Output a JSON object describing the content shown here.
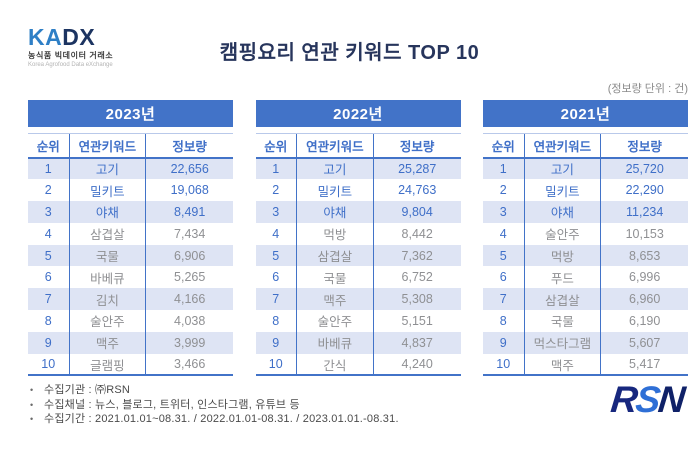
{
  "header": {
    "logo": {
      "name": "KADX",
      "name_ka": "KA",
      "name_dx": "DX",
      "sub_ko": "농식품 빅데이터 거래소",
      "sub_en": "Korea Agrofood Data eXchange"
    },
    "title": "캠핑요리 연관 키워드 TOP 10",
    "unit_note": "(정보량 단위 : 건)"
  },
  "columns": [
    "순위",
    "연관키워드",
    "정보량"
  ],
  "tables": [
    {
      "year": "2023년",
      "rows": [
        [
          "1",
          "고기",
          "22,656"
        ],
        [
          "2",
          "밀키트",
          "19,068"
        ],
        [
          "3",
          "야채",
          "8,491"
        ],
        [
          "4",
          "삼겹살",
          "7,434"
        ],
        [
          "5",
          "국물",
          "6,906"
        ],
        [
          "6",
          "바베큐",
          "5,265"
        ],
        [
          "7",
          "김치",
          "4,166"
        ],
        [
          "8",
          "술안주",
          "4,038"
        ],
        [
          "9",
          "맥주",
          "3,999"
        ],
        [
          "10",
          "글램핑",
          "3,466"
        ]
      ]
    },
    {
      "year": "2022년",
      "rows": [
        [
          "1",
          "고기",
          "25,287"
        ],
        [
          "2",
          "밀키트",
          "24,763"
        ],
        [
          "3",
          "야채",
          "9,804"
        ],
        [
          "4",
          "먹방",
          "8,442"
        ],
        [
          "5",
          "삼겹살",
          "7,362"
        ],
        [
          "6",
          "국물",
          "6,752"
        ],
        [
          "7",
          "맥주",
          "5,308"
        ],
        [
          "8",
          "술안주",
          "5,151"
        ],
        [
          "9",
          "바베큐",
          "4,837"
        ],
        [
          "10",
          "간식",
          "4,240"
        ]
      ]
    },
    {
      "year": "2021년",
      "rows": [
        [
          "1",
          "고기",
          "25,720"
        ],
        [
          "2",
          "밀키트",
          "22,290"
        ],
        [
          "3",
          "야채",
          "11,234"
        ],
        [
          "4",
          "술안주",
          "10,153"
        ],
        [
          "5",
          "먹방",
          "8,653"
        ],
        [
          "6",
          "푸드",
          "6,996"
        ],
        [
          "7",
          "삼겹살",
          "6,960"
        ],
        [
          "8",
          "국물",
          "6,190"
        ],
        [
          "9",
          "먹스타그램",
          "5,607"
        ],
        [
          "10",
          "맥주",
          "5,417"
        ]
      ]
    }
  ],
  "footnotes": [
    "수집기관 : ㈜RSN",
    "수집채널 : 뉴스, 블로그, 트위터, 인스타그램, 유튜브 등",
    "수집기간 : 2021.01.01~08.31. / 2022.01.01-08.31. / 2023.01.01.-08.31."
  ],
  "rsn_logo": {
    "r": "R",
    "s": "S",
    "n": "N"
  },
  "colors": {
    "accent": "#4273C8",
    "light_row": "#DEE4F4",
    "blue_text": "#3F6FC8",
    "gray_text": "#8F9093",
    "title": "#27355C"
  },
  "chart_data": [
    {
      "type": "table",
      "title": "2023년",
      "columns": [
        "순위",
        "연관키워드",
        "정보량"
      ],
      "rows": [
        [
          1,
          "고기",
          22656
        ],
        [
          2,
          "밀키트",
          19068
        ],
        [
          3,
          "야채",
          8491
        ],
        [
          4,
          "삼겹살",
          7434
        ],
        [
          5,
          "국물",
          6906
        ],
        [
          6,
          "바베큐",
          5265
        ],
        [
          7,
          "김치",
          4166
        ],
        [
          8,
          "술안주",
          4038
        ],
        [
          9,
          "맥주",
          3999
        ],
        [
          10,
          "글램핑",
          3466
        ]
      ]
    },
    {
      "type": "table",
      "title": "2022년",
      "columns": [
        "순위",
        "연관키워드",
        "정보량"
      ],
      "rows": [
        [
          1,
          "고기",
          25287
        ],
        [
          2,
          "밀키트",
          24763
        ],
        [
          3,
          "야채",
          9804
        ],
        [
          4,
          "먹방",
          8442
        ],
        [
          5,
          "삼겹살",
          7362
        ],
        [
          6,
          "국물",
          6752
        ],
        [
          7,
          "맥주",
          5308
        ],
        [
          8,
          "술안주",
          5151
        ],
        [
          9,
          "바베큐",
          4837
        ],
        [
          10,
          "간식",
          4240
        ]
      ]
    },
    {
      "type": "table",
      "title": "2021년",
      "columns": [
        "순위",
        "연관키워드",
        "정보량"
      ],
      "rows": [
        [
          1,
          "고기",
          25720
        ],
        [
          2,
          "밀키트",
          22290
        ],
        [
          3,
          "야채",
          11234
        ],
        [
          4,
          "술안주",
          10153
        ],
        [
          5,
          "먹방",
          8653
        ],
        [
          6,
          "푸드",
          6996
        ],
        [
          7,
          "삼겹살",
          6960
        ],
        [
          8,
          "국물",
          6190
        ],
        [
          9,
          "먹스타그램",
          5607
        ],
        [
          10,
          "맥주",
          5417
        ]
      ]
    }
  ]
}
